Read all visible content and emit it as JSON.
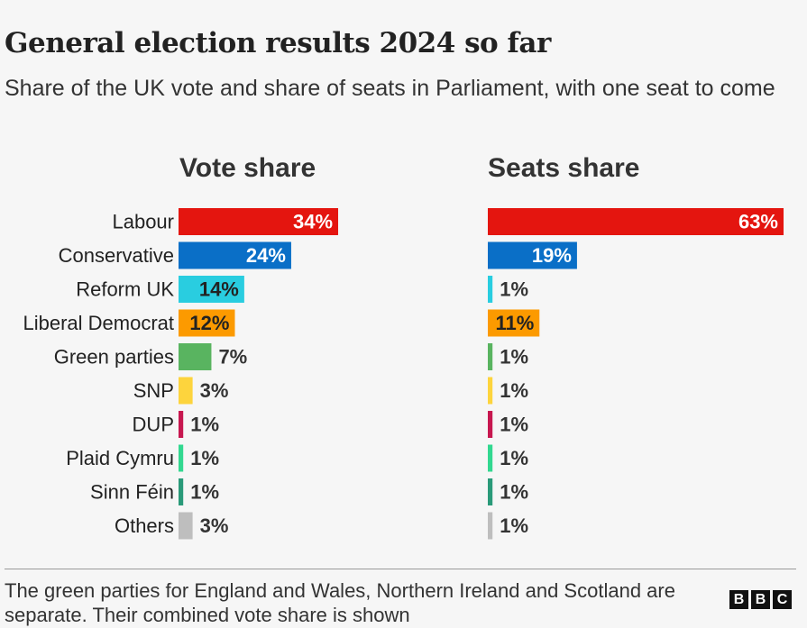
{
  "title": "General election results 2024 so far",
  "subtitle": "Share of the UK vote and share of seats in Parliament, with one seat to come",
  "footnote": "The green parties for England and Wales, Northern Ireland and Scotland are separate. Their combined vote share is shown",
  "logo": [
    "B",
    "B",
    "C"
  ],
  "chart_data": {
    "type": "bar",
    "orientation": "horizontal",
    "categories": [
      "Labour",
      "Conservative",
      "Reform UK",
      "Liberal Democrat",
      "Green parties",
      "SNP",
      "DUP",
      "Plaid Cymru",
      "Sinn Féin",
      "Others"
    ],
    "colors": [
      "#e4150f",
      "#0a6fc7",
      "#29cde0",
      "#fc9a00",
      "#59b460",
      "#fdd43d",
      "#c7174f",
      "#32d890",
      "#2a9a79",
      "#bebebe"
    ],
    "label_inside_text_colors": [
      "#ffffff",
      "#ffffff",
      "#222222",
      "#222222",
      "#ffffff",
      "#ffffff",
      "#ffffff",
      "#ffffff",
      "#ffffff",
      "#ffffff"
    ],
    "panels": [
      {
        "title": "Vote share",
        "values": [
          34,
          24,
          14,
          12,
          7,
          3,
          1,
          1,
          1,
          3
        ],
        "labels": [
          "34%",
          "24%",
          "14%",
          "12%",
          "7%",
          "3%",
          "1%",
          "1%",
          "1%",
          "3%"
        ]
      },
      {
        "title": "Seats share",
        "values": [
          63,
          19,
          1,
          11,
          1,
          1,
          1,
          1,
          1,
          1
        ],
        "labels": [
          "63%",
          "19%",
          "1%",
          "11%",
          "1%",
          "1%",
          "1%",
          "1%",
          "1%",
          "1%"
        ]
      }
    ],
    "xlim": [
      0,
      63
    ],
    "grid": false,
    "legend": "none"
  }
}
